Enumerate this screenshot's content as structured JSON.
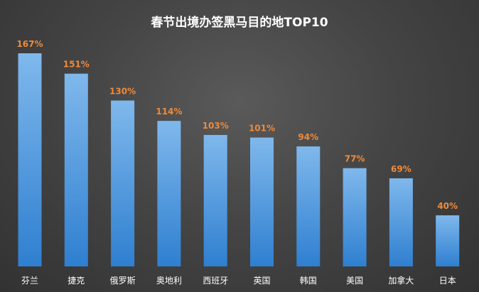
{
  "chart_data": {
    "type": "bar",
    "title": "春节出境办签黑马目的地TOP10",
    "categories": [
      "芬兰",
      "捷克",
      "俄罗斯",
      "奥地利",
      "西班牙",
      "英国",
      "韩国",
      "美国",
      "加拿大",
      "日本"
    ],
    "values": [
      167,
      151,
      130,
      114,
      103,
      101,
      94,
      77,
      69,
      40
    ],
    "value_labels": [
      "167%",
      "151%",
      "130%",
      "114%",
      "103%",
      "101%",
      "94%",
      "77%",
      "69%",
      "40%"
    ],
    "ylim": [
      0,
      180
    ],
    "grid": false,
    "legend": "none",
    "colors": {
      "bar_top": "#7fb8ec",
      "bar_bottom": "#2f7fd0",
      "value_label": "#ef8a3a",
      "text": "#ffffff"
    }
  }
}
